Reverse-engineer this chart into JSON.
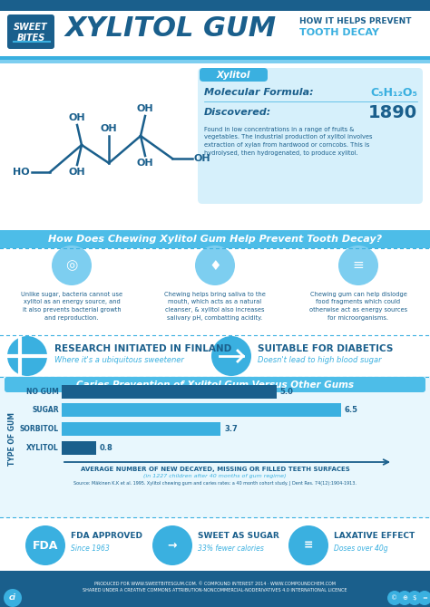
{
  "title_main": "XYLITOL GUM",
  "brand_line1": "SWEET",
  "brand_line2": "BITES",
  "bg_color": "#ffffff",
  "header_bg": "#ffffff",
  "dark_blue": "#1a5f8c",
  "mid_blue": "#3ab0e0",
  "light_blue": "#7dcef0",
  "pale_blue": "#d6f0fb",
  "section_header_blue": "#4dbde8",
  "bar_bg": "#e8f7fd",
  "bar_colors": [
    "#2e7db5",
    "#2e7db5",
    "#2e7db5",
    "#1a5f8a"
  ],
  "bar_labels": [
    "NO GUM",
    "SUGAR",
    "SORBITOL",
    "XYLITOL"
  ],
  "bar_values": [
    5.0,
    6.5,
    3.7,
    0.8
  ],
  "bar_section_title": "Caries Prevention of Xylitol Gum Versus Other Gums",
  "bar_xlabel": "AVERAGE NUMBER OF NEW DECAYED, MISSING OR FILLED TEETH SURFACES",
  "bar_xlabel2": "(in 1227 children after 40 months of gum regime)",
  "bar_source": "Source: Mäkinen K.K et al. 1995. Xylitol chewing gum and caries rates: a 40 month cohort study. J Dent Res. 74(12):1904-1913.",
  "xylitol_label": "Xylitol",
  "mol_formula_label": "Molecular Formula:",
  "mol_formula_val": "C₅H₁₂O₅",
  "discovered_label": "Discovered:",
  "discovered_val": "1890",
  "mol_desc": "Found in low concentrations in a range of fruits &\nvegetables. The industrial production of xylitol involves\nextraction of xylan from hardwood or corncobs. This is\nhydrolysed, then hydrogenated, to produce xylitol.",
  "section2_title": "How Does Chewing Xylitol Gum Help Prevent Tooth Decay?",
  "col1_text": "Unlike sugar, bacteria cannot use\nxylitol as an energy source, and\nit also prevents bacterial growth\nand reproduction.",
  "col2_text": "Chewing helps bring saliva to the\nmouth, which acts as a natural\ncleanser, & xylitol also increases\nsalivary pH, combatting acidity.",
  "col3_text": "Chewing gum can help dislodge\nfood fragments which could\notherwise act as energy sources\nfor microorganisms.",
  "fact1_title": "RESEARCH INITIATED IN FINLAND",
  "fact1_sub": "Where it's a ubiquitous sweetener",
  "fact2_title": "SUITABLE FOR DIABETICS",
  "fact2_sub": "Doesn't lead to high blood sugar",
  "footer1_title": "FDA APPROVED",
  "footer1_sub": "Since 1963",
  "footer2_title": "SWEET AS SUGAR",
  "footer2_sub": "33% fewer calories",
  "footer3_title": "LAXATIVE EFFECT",
  "footer3_sub": "Doses over 40g",
  "footer_credit": "PRODUCED FOR WWW.SWEETBITESGUM.COM. © COMPOUND INTEREST 2014 · WWW.COMPOUNDCHEM.COM\nSHARED UNDER A CREATIVE COMMONS ATTRIBUTION-NONCOMMERCIAL-NODERIVATIVES 4.0 INTERNATIONAL LICENCE",
  "white": "#ffffff",
  "footer_bg": "#1a5f8c"
}
